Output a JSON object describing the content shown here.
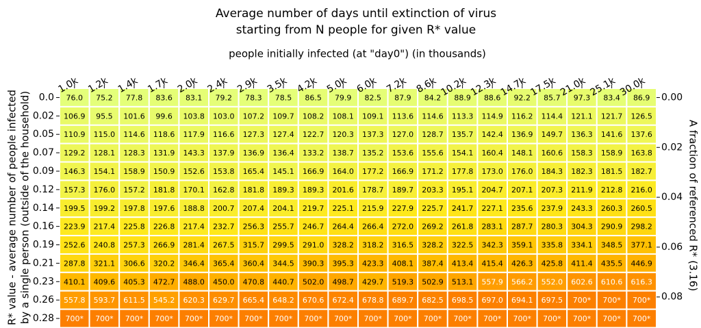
{
  "chart_data": {
    "type": "heatmap",
    "title": [
      "Average number of days until extinction of virus",
      "starting from N people for given R* value"
    ],
    "x_label": "people initially infected (at \"day0\") (in thousands)",
    "y_label": [
      "R* value - average number of people infected",
      "by a single person (outside of the household)"
    ],
    "y2_label": "A fraction of referenced R* (3.16)",
    "categories": [
      "1.0k",
      "1.2k",
      "1.4k",
      "1.7k",
      "2.0k",
      "2.4k",
      "2.9k",
      "3.5k",
      "4.2k",
      "5.0k",
      "6.0k",
      "7.2k",
      "8.6k",
      "10.2k",
      "12.3k",
      "14.7k",
      "17.5k",
      "21.0k",
      "25.1k",
      "30.0k"
    ],
    "y_categories": [
      "0.0",
      "0.02",
      "0.05",
      "0.07",
      "0.09",
      "0.12",
      "0.14",
      "0.16",
      "0.19",
      "0.21",
      "0.23",
      "0.26",
      "0.28"
    ],
    "z": [
      [
        76.0,
        75.2,
        77.8,
        83.6,
        83.1,
        79.2,
        78.3,
        78.5,
        86.5,
        79.9,
        82.5,
        87.9,
        84.2,
        88.9,
        88.6,
        92.2,
        85.7,
        97.3,
        83.4,
        86.9
      ],
      [
        106.9,
        95.5,
        101.6,
        99.6,
        103.8,
        103.0,
        107.2,
        109.7,
        108.2,
        108.1,
        109.1,
        113.6,
        114.6,
        113.3,
        114.9,
        116.2,
        114.4,
        121.1,
        121.7,
        126.5
      ],
      [
        110.9,
        115.0,
        114.6,
        118.6,
        117.9,
        116.6,
        127.3,
        127.4,
        122.7,
        120.3,
        137.3,
        127.0,
        128.7,
        135.7,
        142.4,
        136.9,
        149.7,
        136.3,
        141.6,
        137.6
      ],
      [
        129.2,
        128.1,
        128.3,
        131.9,
        143.3,
        137.9,
        136.9,
        136.4,
        133.2,
        138.7,
        135.2,
        153.6,
        155.6,
        154.1,
        160.4,
        148.1,
        160.6,
        158.3,
        158.9,
        163.8
      ],
      [
        146.3,
        154.1,
        158.9,
        150.9,
        152.6,
        153.8,
        165.4,
        145.1,
        166.9,
        164.0,
        177.2,
        166.9,
        171.2,
        177.8,
        173.0,
        176.0,
        184.3,
        182.3,
        181.5,
        182.7
      ],
      [
        157.3,
        176.0,
        157.2,
        181.8,
        170.1,
        162.8,
        181.8,
        189.3,
        189.3,
        201.6,
        178.7,
        189.7,
        203.3,
        195.1,
        204.7,
        207.1,
        207.3,
        211.9,
        212.8,
        216.0
      ],
      [
        199.5,
        199.2,
        197.8,
        197.6,
        188.8,
        200.7,
        207.4,
        204.1,
        219.7,
        225.1,
        215.9,
        227.9,
        225.7,
        241.7,
        227.1,
        235.6,
        237.9,
        243.3,
        260.3,
        260.5
      ],
      [
        223.9,
        217.4,
        225.8,
        226.8,
        217.4,
        232.7,
        256.3,
        255.7,
        246.7,
        264.4,
        266.4,
        272.0,
        269.2,
        261.8,
        283.1,
        287.7,
        280.3,
        304.3,
        290.9,
        298.2
      ],
      [
        252.6,
        240.8,
        257.3,
        266.9,
        281.4,
        267.5,
        315.7,
        299.5,
        291.0,
        328.2,
        318.2,
        316.5,
        328.2,
        322.5,
        342.3,
        359.1,
        335.8,
        334.1,
        348.5,
        377.1
      ],
      [
        287.8,
        321.1,
        306.6,
        320.2,
        346.4,
        365.4,
        360.4,
        344.5,
        390.3,
        395.3,
        423.3,
        408.1,
        387.4,
        413.4,
        415.4,
        426.3,
        425.8,
        411.4,
        435.5,
        446.9
      ],
      [
        410.1,
        409.6,
        405.3,
        472.7,
        488.0,
        450.0,
        470.8,
        440.7,
        502.0,
        498.7,
        429.7,
        519.3,
        502.9,
        513.1,
        557.9,
        566.2,
        552.0,
        602.6,
        610.6,
        616.3
      ],
      [
        557.8,
        593.7,
        611.5,
        545.2,
        620.3,
        629.7,
        665.4,
        648.2,
        670.6,
        672.4,
        678.8,
        689.7,
        682.5,
        698.5,
        697.0,
        694.1,
        697.5,
        700,
        700,
        700
      ],
      [
        700,
        700,
        700,
        700,
        700,
        700,
        700,
        700,
        700,
        700,
        700,
        700,
        700,
        700,
        700,
        700,
        700,
        700,
        700,
        700
      ]
    ],
    "value_labels": [
      [
        "76.0",
        "75.2",
        "77.8",
        "83.6",
        "83.1",
        "79.2",
        "78.3",
        "78.5",
        "86.5",
        "79.9",
        "82.5",
        "87.9",
        "84.2",
        "88.9",
        "88.6",
        "92.2",
        "85.7",
        "97.3",
        "83.4",
        "86.9"
      ],
      [
        "106.9",
        "95.5",
        "101.6",
        "99.6",
        "103.8",
        "103.0",
        "107.2",
        "109.7",
        "108.2",
        "108.1",
        "109.1",
        "113.6",
        "114.6",
        "113.3",
        "114.9",
        "116.2",
        "114.4",
        "121.1",
        "121.7",
        "126.5"
      ],
      [
        "110.9",
        "115.0",
        "114.6",
        "118.6",
        "117.9",
        "116.6",
        "127.3",
        "127.4",
        "122.7",
        "120.3",
        "137.3",
        "127.0",
        "128.7",
        "135.7",
        "142.4",
        "136.9",
        "149.7",
        "136.3",
        "141.6",
        "137.6"
      ],
      [
        "129.2",
        "128.1",
        "128.3",
        "131.9",
        "143.3",
        "137.9",
        "136.9",
        "136.4",
        "133.2",
        "138.7",
        "135.2",
        "153.6",
        "155.6",
        "154.1",
        "160.4",
        "148.1",
        "160.6",
        "158.3",
        "158.9",
        "163.8"
      ],
      [
        "146.3",
        "154.1",
        "158.9",
        "150.9",
        "152.6",
        "153.8",
        "165.4",
        "145.1",
        "166.9",
        "164.0",
        "177.2",
        "166.9",
        "171.2",
        "177.8",
        "173.0",
        "176.0",
        "184.3",
        "182.3",
        "181.5",
        "182.7"
      ],
      [
        "157.3",
        "176.0",
        "157.2",
        "181.8",
        "170.1",
        "162.8",
        "181.8",
        "189.3",
        "189.3",
        "201.6",
        "178.7",
        "189.7",
        "203.3",
        "195.1",
        "204.7",
        "207.1",
        "207.3",
        "211.9",
        "212.8",
        "216.0"
      ],
      [
        "199.5",
        "199.2",
        "197.8",
        "197.6",
        "188.8",
        "200.7",
        "207.4",
        "204.1",
        "219.7",
        "225.1",
        "215.9",
        "227.9",
        "225.7",
        "241.7",
        "227.1",
        "235.6",
        "237.9",
        "243.3",
        "260.3",
        "260.5"
      ],
      [
        "223.9",
        "217.4",
        "225.8",
        "226.8",
        "217.4",
        "232.7",
        "256.3",
        "255.7",
        "246.7",
        "264.4",
        "266.4",
        "272.0",
        "269.2",
        "261.8",
        "283.1",
        "287.7",
        "280.3",
        "304.3",
        "290.9",
        "298.2"
      ],
      [
        "252.6",
        "240.8",
        "257.3",
        "266.9",
        "281.4",
        "267.5",
        "315.7",
        "299.5",
        "291.0",
        "328.2",
        "318.2",
        "316.5",
        "328.2",
        "322.5",
        "342.3",
        "359.1",
        "335.8",
        "334.1",
        "348.5",
        "377.1"
      ],
      [
        "287.8",
        "321.1",
        "306.6",
        "320.2",
        "346.4",
        "365.4",
        "360.4",
        "344.5",
        "390.3",
        "395.3",
        "423.3",
        "408.1",
        "387.4",
        "413.4",
        "415.4",
        "426.3",
        "425.8",
        "411.4",
        "435.5",
        "446.9"
      ],
      [
        "410.1",
        "409.6",
        "405.3",
        "472.7",
        "488.0",
        "450.0",
        "470.8",
        "440.7",
        "502.0",
        "498.7",
        "429.7",
        "519.3",
        "502.9",
        "513.1",
        "557.9",
        "566.2",
        "552.0",
        "602.6",
        "610.6",
        "616.3"
      ],
      [
        "557.8",
        "593.7",
        "611.5",
        "545.2",
        "620.3",
        "629.7",
        "665.4",
        "648.2",
        "670.6",
        "672.4",
        "678.8",
        "689.7",
        "682.5",
        "698.5",
        "697.0",
        "694.1",
        "697.5",
        "700*",
        "700*",
        "700*"
      ],
      [
        "700*",
        "700*",
        "700*",
        "700*",
        "700*",
        "700*",
        "700*",
        "700*",
        "700*",
        "700*",
        "700*",
        "700*",
        "700*",
        "700*",
        "700*",
        "700*",
        "700*",
        "700*",
        "700*",
        "700*"
      ]
    ],
    "colorscale": [
      "#e4ff7a",
      "#ffe81a",
      "#ffbd00",
      "#ffa000",
      "#fc7f00"
    ],
    "zlim": [
      75.2,
      700
    ],
    "y2lim": [
      -0.0037,
      0.0923
    ],
    "y2ticks": [
      {
        "value": 0,
        "label": "0.00"
      },
      {
        "value": 0.02,
        "label": "0.02"
      },
      {
        "value": 0.04,
        "label": "0.04"
      },
      {
        "value": 0.06,
        "label": "0.06"
      },
      {
        "value": 0.08,
        "label": "0.08"
      }
    ]
  }
}
